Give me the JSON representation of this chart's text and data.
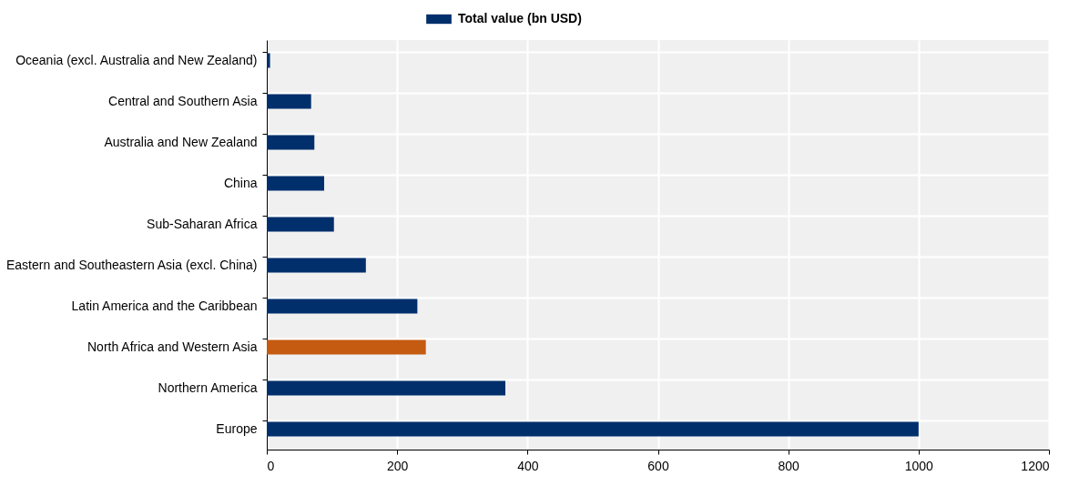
{
  "chart_data": {
    "type": "bar",
    "orientation": "horizontal",
    "categories": [
      "Oceania (excl. Australia and New Zealand)",
      "Central and Southern Asia",
      "Australia and New Zealand",
      "China",
      "Sub-Saharan Africa",
      "Eastern and Southeastern Asia (excl. China)",
      "Latin America and the Caribbean",
      "North Africa and Western Asia",
      "Northern America",
      "Europe"
    ],
    "series": [
      {
        "name": "Total value (bn USD)",
        "color": "#002f6c",
        "colors": [
          "#002f6c",
          "#002f6c",
          "#002f6c",
          "#002f6c",
          "#002f6c",
          "#002f6c",
          "#002f6c",
          "#c55a11",
          "#002f6c",
          "#002f6c"
        ],
        "values": [
          5,
          68,
          73,
          88,
          103,
          152,
          231,
          244,
          366,
          1000
        ]
      }
    ],
    "xlim": [
      0,
      1200
    ],
    "xticks": [
      0,
      200,
      400,
      600,
      800,
      1000,
      1200
    ],
    "grid": true,
    "legend": "top"
  }
}
